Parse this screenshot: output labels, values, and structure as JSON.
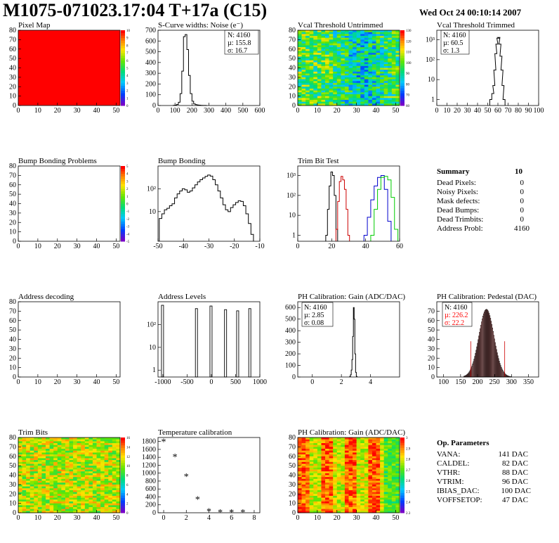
{
  "header": {
    "title": "M1075-071023.17:04 T+17a (C15)",
    "date": "Wed Oct 24 00:10:14 2007"
  },
  "panels": {
    "pixel_map": {
      "title": "Pixel Map"
    },
    "scurve": {
      "title": "S-Curve widths: Noise (e⁻)",
      "stat_n": "N: 4160",
      "stat_mu": "µ: 155.8",
      "stat_sigma": "σ: 16.7"
    },
    "vcal_untrimmed": {
      "title": "Vcal Threshold Untrimmed"
    },
    "vcal_trimmed": {
      "title": "Vcal Threshold Trimmed",
      "stat_n": "N: 4160",
      "stat_mu": "µ: 60.5",
      "stat_sigma": "σ:  1.3"
    },
    "bump_problems": {
      "title": "Bump Bonding Problems"
    },
    "bump_bonding": {
      "title": "Bump Bonding"
    },
    "trim_bit_test": {
      "title": "Trim Bit Test"
    },
    "address_decoding": {
      "title": "Address decoding"
    },
    "address_levels": {
      "title": "Address Levels"
    },
    "ph_gain": {
      "title": "PH Calibration: Gain (ADC/DAC)",
      "stat_n": "N: 4160",
      "stat_mu": "µ: 2.85",
      "stat_sigma": "σ: 0.08"
    },
    "ph_pedestal": {
      "title": "PH Calibration: Pedestal (DAC)",
      "stat_n": "N: 4160",
      "stat_mu": "µ: 226.2",
      "stat_sigma": "σ: 22.2"
    },
    "trim_bits": {
      "title": "Trim Bits"
    },
    "temperature": {
      "title": "Temperature calibration"
    },
    "ph_gain_map": {
      "title": "PH Calibration: Gain (ADC/DAC)"
    }
  },
  "summary": {
    "title": "Summary",
    "total": "10",
    "rows": [
      {
        "label": "Dead Pixels:",
        "value": "0"
      },
      {
        "label": "Noisy Pixels:",
        "value": "0"
      },
      {
        "label": "Mask defects:",
        "value": "0"
      },
      {
        "label": "Dead Bumps:",
        "value": "0"
      },
      {
        "label": "Dead Trimbits:",
        "value": "0"
      },
      {
        "label": "Address Probl:",
        "value": "4160"
      }
    ]
  },
  "op_params": {
    "title": "Op. Parameters",
    "rows": [
      {
        "label": "VANA:",
        "value": "141 DAC"
      },
      {
        "label": "CALDEL:",
        "value": "82 DAC"
      },
      {
        "label": "VTHR:",
        "value": "88 DAC"
      },
      {
        "label": "VTRIM:",
        "value": "96 DAC"
      },
      {
        "label": "IBIAS_DAC:",
        "value": "100 DAC"
      },
      {
        "label": "VOFFSETOP:",
        "value": "47 DAC"
      }
    ]
  },
  "colors": {
    "map_red": "#ff0000",
    "trim_black": "#000000",
    "trim_red": "#cc0000",
    "trim_blue": "#0000cc",
    "trim_green": "#00cc00",
    "stat_red": "#ff0000",
    "pedestal_fill": "#cc0000"
  },
  "chart_data": [
    {
      "id": "pixel_map",
      "type": "heatmap",
      "title": "Pixel Map",
      "xlim": [
        0,
        52
      ],
      "ylim": [
        0,
        80
      ],
      "xticks": [
        "0",
        "10",
        "20",
        "30",
        "40",
        "50"
      ],
      "yticks": [
        "0",
        "10",
        "20",
        "30",
        "40",
        "50",
        "60",
        "70",
        "80"
      ],
      "zticks": [
        "0",
        "1",
        "2",
        "3",
        "4",
        "5",
        "6",
        "7",
        "8",
        "9",
        "10"
      ],
      "uniform_value": 10
    },
    {
      "id": "scurve",
      "type": "histogram",
      "title": "S-Curve widths: Noise (e⁻)",
      "xlim": [
        0,
        600
      ],
      "ylim": [
        0,
        700
      ],
      "xticks": [
        "0",
        "100",
        "200",
        "300",
        "400",
        "500",
        "600"
      ],
      "yticks": [
        "0",
        "100",
        "200",
        "300",
        "400",
        "500",
        "600",
        "700"
      ],
      "x": [
        95,
        105,
        115,
        125,
        135,
        145,
        155,
        165,
        175,
        185,
        195,
        205,
        215,
        225,
        235,
        245,
        255,
        265,
        275,
        285
      ],
      "values": [
        2,
        4,
        10,
        30,
        110,
        320,
        640,
        660,
        520,
        280,
        110,
        40,
        15,
        8,
        5,
        3,
        2,
        1,
        1,
        0
      ]
    },
    {
      "id": "vcal_untrimmed",
      "type": "heatmap",
      "title": "Vcal Threshold Untrimmed",
      "xlim": [
        0,
        52
      ],
      "ylim": [
        0,
        80
      ],
      "xticks": [
        "0",
        "10",
        "20",
        "30",
        "40",
        "50"
      ],
      "yticks": [
        "0",
        "10",
        "20",
        "30",
        "40",
        "50",
        "60",
        "70",
        "80"
      ],
      "zticks": [
        "60",
        "70",
        "80",
        "90",
        "100",
        "110",
        "120",
        "130"
      ],
      "zrange": [
        55,
        135
      ]
    },
    {
      "id": "vcal_trimmed",
      "type": "histogram",
      "title": "Vcal Threshold Trimmed",
      "xlim": [
        0,
        100
      ],
      "ylim": [
        0.5,
        3000
      ],
      "ylog": true,
      "xticks": [
        "0",
        "10",
        "20",
        "30",
        "40",
        "50",
        "60",
        "70",
        "80",
        "90",
        "100"
      ],
      "yticks": [
        "1",
        "10",
        "10²",
        "10³"
      ],
      "x": [
        53,
        55,
        56,
        57,
        58,
        59,
        60,
        61,
        62,
        63,
        64,
        65,
        66
      ],
      "values": [
        1,
        2,
        5,
        30,
        200,
        600,
        1200,
        1300,
        600,
        150,
        30,
        5,
        1
      ]
    },
    {
      "id": "bump_problems",
      "type": "heatmap",
      "title": "Bump Bonding Problems",
      "xlim": [
        0,
        52
      ],
      "ylim": [
        0,
        80
      ],
      "xticks": [
        "0",
        "10",
        "20",
        "30",
        "40",
        "50"
      ],
      "yticks": [
        "0",
        "10",
        "20",
        "30",
        "40",
        "50",
        "60",
        "70",
        "80"
      ],
      "zticks": [
        "-5",
        "-4",
        "-3",
        "-2",
        "-1",
        "0",
        "1",
        "2",
        "3",
        "4",
        "5"
      ],
      "empty": true
    },
    {
      "id": "bump_bonding",
      "type": "histogram",
      "title": "Bump Bonding",
      "xlim": [
        -50,
        -10
      ],
      "ylim": [
        0.5,
        1000
      ],
      "ylog": true,
      "xticks": [
        "-50",
        "-40",
        "-30",
        "-20",
        "-10"
      ],
      "yticks": [
        "10",
        "10²"
      ],
      "x": [
        -49,
        -48,
        -47,
        -46,
        -45,
        -44,
        -43,
        -42,
        -41,
        -40,
        -39,
        -38,
        -37,
        -36,
        -35,
        -34,
        -33,
        -32,
        -31,
        -30,
        -29,
        -28,
        -27,
        -26,
        -25,
        -24,
        -23,
        -22,
        -21,
        -20,
        -19,
        -18,
        -17,
        -16,
        -15,
        -14,
        -13
      ],
      "values": [
        5,
        8,
        12,
        14,
        18,
        22,
        40,
        60,
        80,
        100,
        90,
        70,
        80,
        110,
        150,
        200,
        250,
        300,
        350,
        400,
        360,
        250,
        150,
        80,
        40,
        20,
        12,
        10,
        15,
        20,
        25,
        30,
        28,
        18,
        8,
        3,
        1
      ]
    },
    {
      "id": "trim_bit_test",
      "type": "histogram",
      "title": "Trim Bit Test",
      "xlim": [
        0,
        60
      ],
      "ylim": [
        0.5,
        3000
      ],
      "ylog": true,
      "xticks": [
        "0",
        "20",
        "40",
        "60"
      ],
      "yticks": [
        "1",
        "10",
        "10²",
        "10³"
      ],
      "series": [
        {
          "color": "#000000",
          "x": [
            17,
            18,
            19,
            20,
            21,
            22,
            23
          ],
          "values": [
            1,
            20,
            300,
            1500,
            1000,
            100,
            2
          ]
        },
        {
          "color": "#cc0000",
          "x": [
            23,
            24,
            25,
            26,
            27,
            28,
            29,
            30
          ],
          "values": [
            2,
            50,
            500,
            900,
            600,
            200,
            20,
            1
          ]
        },
        {
          "color": "#0000cc",
          "x": [
            40,
            42,
            44,
            46,
            48,
            50,
            52,
            54
          ],
          "values": [
            1,
            8,
            60,
            300,
            800,
            1000,
            200,
            5
          ]
        },
        {
          "color": "#00cc00",
          "x": [
            44,
            46,
            48,
            50,
            52,
            54,
            56,
            58
          ],
          "values": [
            1,
            20,
            200,
            800,
            900,
            600,
            80,
            2
          ]
        }
      ]
    },
    {
      "id": "address_decoding",
      "type": "heatmap",
      "title": "Address decoding",
      "xlim": [
        0,
        52
      ],
      "ylim": [
        0,
        80
      ],
      "xticks": [
        "0",
        "10",
        "20",
        "30",
        "40",
        "50"
      ],
      "yticks": [
        "0",
        "10",
        "20",
        "30",
        "40",
        "50",
        "60",
        "70",
        "80"
      ],
      "empty": true
    },
    {
      "id": "address_levels",
      "type": "histogram",
      "title": "Address Levels",
      "xlim": [
        -1100,
        1000
      ],
      "ylim": [
        0.5,
        1000
      ],
      "ylog": true,
      "xticks": [
        "-1000",
        "-500",
        "0",
        "500",
        "1000"
      ],
      "yticks": [
        "1",
        "10",
        "10²"
      ],
      "x": [
        -1000,
        -300,
        0,
        300,
        550,
        800
      ],
      "values": [
        700,
        500,
        650,
        450,
        400,
        500
      ]
    },
    {
      "id": "ph_gain",
      "type": "histogram",
      "title": "PH Calibration: Gain (ADC/DAC)",
      "xlim": [
        -1,
        6
      ],
      "ylim": [
        0,
        650
      ],
      "xticks": [
        "0",
        "2",
        "4"
      ],
      "yticks": [
        "0",
        "100",
        "200",
        "300",
        "400",
        "500",
        "600"
      ],
      "x": [
        2.6,
        2.65,
        2.7,
        2.75,
        2.8,
        2.85,
        2.9,
        2.95,
        3.0,
        3.05
      ],
      "values": [
        5,
        20,
        60,
        150,
        350,
        600,
        500,
        200,
        40,
        5
      ]
    },
    {
      "id": "ph_pedestal",
      "type": "histogram",
      "title": "PH Calibration: Pedestal (DAC)",
      "xlim": [
        80,
        380
      ],
      "ylim": [
        0,
        80
      ],
      "xticks": [
        "100",
        "150",
        "200",
        "250",
        "300",
        "350"
      ],
      "yticks": [
        "0",
        "10",
        "20",
        "30",
        "40",
        "50",
        "60",
        "70"
      ],
      "mean": 226.2,
      "sigma": 22.2,
      "n": 4160,
      "fit_range": [
        180,
        280
      ]
    },
    {
      "id": "trim_bits",
      "type": "heatmap",
      "title": "Trim Bits",
      "xlim": [
        0,
        52
      ],
      "ylim": [
        0,
        80
      ],
      "xticks": [
        "0",
        "10",
        "20",
        "30",
        "40",
        "50"
      ],
      "yticks": [
        "0",
        "10",
        "20",
        "30",
        "40",
        "50",
        "60",
        "70",
        "80"
      ],
      "zticks": [
        "0",
        "2",
        "4",
        "6",
        "8",
        "10",
        "12",
        "14",
        "16"
      ],
      "zrange": [
        0,
        16
      ]
    },
    {
      "id": "temperature",
      "type": "scatter",
      "title": "Temperature calibration",
      "xlim": [
        -0.5,
        8.5
      ],
      "ylim": [
        0,
        1900
      ],
      "xticks": [
        "0",
        "2",
        "4",
        "6",
        "8"
      ],
      "yticks": [
        "0",
        "200",
        "400",
        "600",
        "800",
        "1000",
        "1200",
        "1400",
        "1600",
        "1800"
      ],
      "x": [
        0,
        1,
        2,
        3,
        4,
        5,
        6,
        7
      ],
      "values": [
        1800,
        1420,
        920,
        350,
        40,
        20,
        20,
        20
      ]
    },
    {
      "id": "ph_gain_map",
      "type": "heatmap",
      "title": "PH Calibration: Gain (ADC/DAC)",
      "xlim": [
        0,
        52
      ],
      "ylim": [
        0,
        80
      ],
      "xticks": [
        "0",
        "10",
        "20",
        "30",
        "40",
        "50"
      ],
      "yticks": [
        "0",
        "10",
        "20",
        "30",
        "40",
        "50",
        "60",
        "70",
        "80"
      ],
      "zticks": [
        "2.3",
        "2.4",
        "2.5",
        "2.6",
        "2.7",
        "2.8",
        "2.9",
        "3"
      ],
      "zrange": [
        2.3,
        3.0
      ]
    }
  ]
}
